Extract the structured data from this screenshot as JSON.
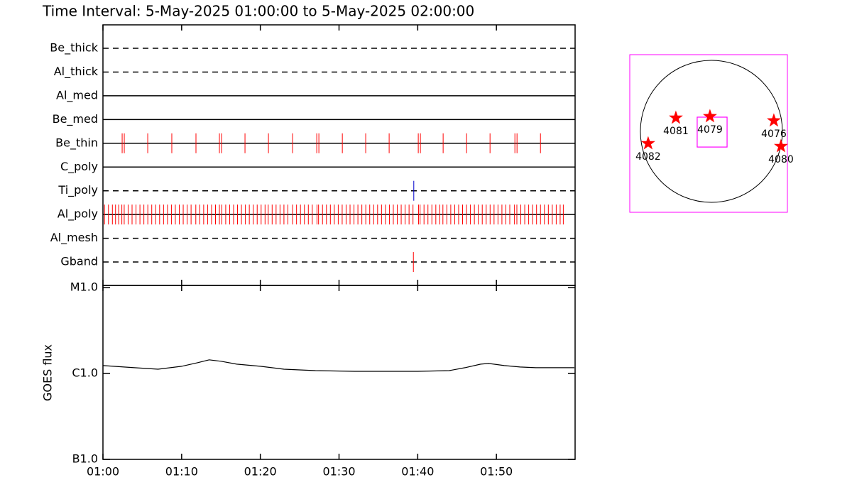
{
  "chart_data": [
    {
      "type": "timeline",
      "title": "Time Interval:  5-May-2025 01:00:00 to  5-May-2025 02:00:00",
      "rows": [
        {
          "name": "Be_thick",
          "line_style": "dashed",
          "color": "#ff0000",
          "events": []
        },
        {
          "name": "Al_thick",
          "line_style": "dashed",
          "color": "#ff0000",
          "events": []
        },
        {
          "name": "Al_med",
          "line_style": "solid",
          "color": "#ff0000",
          "events": []
        },
        {
          "name": "Be_med",
          "line_style": "solid",
          "color": "#ff0000",
          "events": []
        },
        {
          "name": "Be_thin",
          "line_style": "solid",
          "color": "#ff0000",
          "events": [
            2.44,
            2.71,
            5.69,
            8.75,
            11.82,
            14.8,
            15.07,
            18.05,
            21.03,
            24.1,
            27.17,
            27.44,
            30.42,
            33.39,
            36.37,
            40.07,
            40.34,
            43.23,
            46.21,
            49.19,
            52.35,
            52.62,
            55.6
          ]
        },
        {
          "name": "C_poly",
          "line_style": "solid",
          "color": "#ff0000",
          "events": []
        },
        {
          "name": "Ti_poly",
          "line_style": "dashed",
          "color": "#0000cc",
          "events": [
            39.5
          ]
        },
        {
          "name": "Al_poly",
          "line_style": "solid",
          "color": "#ff0000",
          "events": [
            0.2,
            0.7,
            1.2,
            1.6,
            2.0,
            2.4,
            2.7,
            3.2,
            3.7,
            4.2,
            4.7,
            5.2,
            5.7,
            6.2,
            6.7,
            7.2,
            7.7,
            8.2,
            8.7,
            9.2,
            9.7,
            10.2,
            10.7,
            11.2,
            11.8,
            12.3,
            12.8,
            13.3,
            13.8,
            14.3,
            14.8,
            15.1,
            15.6,
            16.1,
            16.6,
            17.1,
            17.6,
            18.1,
            18.6,
            19.1,
            19.6,
            20.1,
            20.6,
            21.0,
            21.5,
            22.0,
            22.5,
            23.0,
            23.5,
            24.1,
            24.6,
            25.1,
            25.6,
            26.1,
            26.6,
            27.2,
            27.4,
            27.9,
            28.4,
            28.9,
            29.4,
            29.9,
            30.4,
            30.9,
            31.4,
            31.9,
            32.4,
            32.9,
            33.4,
            33.9,
            34.4,
            34.9,
            35.4,
            35.9,
            36.4,
            36.9,
            37.4,
            37.9,
            38.4,
            38.9,
            39.4,
            40.1,
            40.3,
            40.8,
            41.3,
            41.8,
            42.3,
            42.8,
            43.2,
            43.7,
            44.2,
            44.7,
            45.2,
            45.7,
            46.2,
            46.7,
            47.2,
            47.7,
            48.2,
            48.7,
            49.2,
            49.7,
            50.2,
            50.7,
            51.2,
            51.7,
            52.3,
            52.6,
            53.1,
            53.6,
            54.1,
            54.6,
            55.1,
            55.6,
            56.1,
            56.6,
            57.1,
            57.6,
            58.1,
            58.5
          ]
        },
        {
          "name": "Al_mesh",
          "line_style": "dashed",
          "color": "#ff0000",
          "events": []
        },
        {
          "name": "Gband",
          "line_style": "dashed",
          "color": "#ff0000",
          "events": [
            39.45
          ]
        }
      ]
    },
    {
      "type": "line",
      "ylabel": "GOES flux",
      "x": [
        0,
        4,
        7,
        10,
        12,
        13.5,
        15,
        17,
        20,
        23,
        27,
        32,
        37,
        40,
        44,
        46,
        48,
        49,
        51,
        53,
        55,
        59.9
      ],
      "values": [
        1.235e-06,
        1.166e-06,
        1.122e-06,
        1.212e-06,
        1.334e-06,
        1.44e-06,
        1.386e-06,
        1.283e-06,
        1.212e-06,
        1.122e-06,
        1.08e-06,
        1.059e-06,
        1.059e-06,
        1.059e-06,
        1.08e-06,
        1.166e-06,
        1.283e-06,
        1.308e-06,
        1.235e-06,
        1.189e-06,
        1.166e-06,
        1.166e-06
      ],
      "color": "#000000",
      "log_scale": true,
      "ylim": [
        1e-07,
        1e-05
      ],
      "yticks": [
        {
          "value": 1e-05,
          "label": "M1.0"
        },
        {
          "value": 1e-06,
          "label": "C1.0"
        },
        {
          "value": 1e-07,
          "label": "B1.0"
        }
      ],
      "xlim": [
        0,
        60
      ],
      "xticks": [
        {
          "value": 0,
          "label": "01:00"
        },
        {
          "value": 10,
          "label": "01:10"
        },
        {
          "value": 20,
          "label": "01:20"
        },
        {
          "value": 30,
          "label": "01:30"
        },
        {
          "value": 40,
          "label": "01:40"
        },
        {
          "value": 50,
          "label": "01:50"
        }
      ]
    },
    {
      "type": "map",
      "xlim": [
        -1092,
        1017
      ],
      "ylim": [
        -1083,
        1026
      ],
      "disk_radius": 950,
      "frame_color": "#ff00ff",
      "color": "#ff0000",
      "fov": {
        "x": 10,
        "y": -10,
        "size": 400
      },
      "regions": [
        {
          "label": "4081",
          "x": -475,
          "y": 180
        },
        {
          "label": "4079",
          "x": -19,
          "y": 200
        },
        {
          "label": "4076",
          "x": 836,
          "y": 143
        },
        {
          "label": "4082",
          "x": -846,
          "y": -162
        },
        {
          "label": "4080",
          "x": 931,
          "y": -200
        }
      ]
    }
  ]
}
